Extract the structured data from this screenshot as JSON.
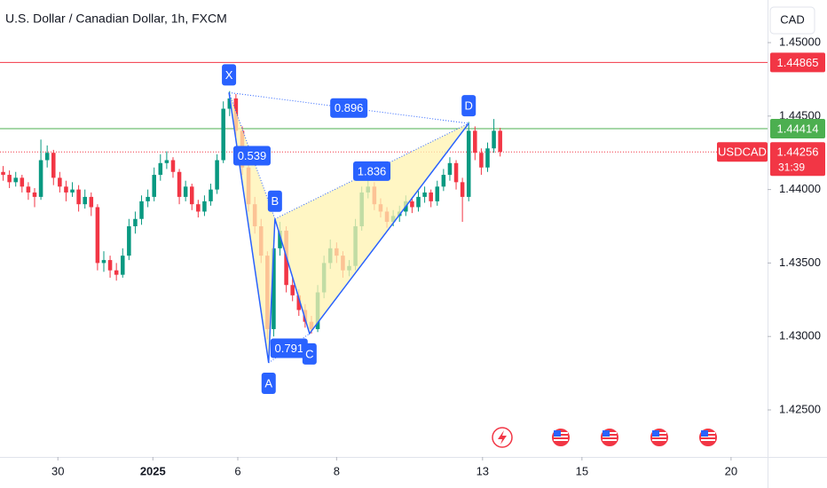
{
  "chart_data": {
    "type": "candlestick",
    "title": "U.S. Dollar / Canadian Dollar, 1h, FXCM",
    "currency": "CAD",
    "up_color": "#089981",
    "down_color": "#f23645",
    "grid": false,
    "ylim": [
      1.4218,
      1.4529
    ],
    "yticks": [
      {
        "value": 1.45,
        "label": "1.45000"
      },
      {
        "value": 1.445,
        "label": "1.44500"
      },
      {
        "value": 1.44,
        "label": "1.44000"
      },
      {
        "value": 1.435,
        "label": "1.43500"
      },
      {
        "value": 1.43,
        "label": "1.43000"
      },
      {
        "value": 1.425,
        "label": "1.42500"
      }
    ],
    "xlim": [
      0,
      122
    ],
    "xticks": [
      {
        "value": 9.2,
        "label": "30"
      },
      {
        "value": 24.3,
        "label": "2025"
      },
      {
        "value": 37.8,
        "label": "6"
      },
      {
        "value": 53.5,
        "label": "8"
      },
      {
        "value": 76.7,
        "label": "13"
      },
      {
        "value": 92.5,
        "label": "15"
      },
      {
        "value": 116.2,
        "label": "20"
      }
    ],
    "candles": [
      [
        1.4412,
        1.4416,
        1.4406,
        1.441
      ],
      [
        1.441,
        1.4413,
        1.4401,
        1.4405
      ],
      [
        1.4405,
        1.4412,
        1.4402,
        1.4408
      ],
      [
        1.4408,
        1.441,
        1.4398,
        1.4402
      ],
      [
        1.4402,
        1.4405,
        1.4393,
        1.4398
      ],
      [
        1.4398,
        1.4401,
        1.4388,
        1.4395
      ],
      [
        1.4395,
        1.4434,
        1.4393,
        1.442
      ],
      [
        1.442,
        1.443,
        1.4415,
        1.4425
      ],
      [
        1.4425,
        1.4427,
        1.4403,
        1.4408
      ],
      [
        1.4408,
        1.4412,
        1.4398,
        1.4402
      ],
      [
        1.4402,
        1.4406,
        1.4392,
        1.4398
      ],
      [
        1.4398,
        1.4405,
        1.4395,
        1.44
      ],
      [
        1.44,
        1.4403,
        1.4385,
        1.439
      ],
      [
        1.439,
        1.44,
        1.4387,
        1.4395
      ],
      [
        1.4395,
        1.4398,
        1.4382,
        1.4388
      ],
      [
        1.4388,
        1.439,
        1.4345,
        1.435
      ],
      [
        1.435,
        1.4358,
        1.4344,
        1.4352
      ],
      [
        1.4352,
        1.4355,
        1.434,
        1.4345
      ],
      [
        1.4345,
        1.435,
        1.4338,
        1.4342
      ],
      [
        1.4342,
        1.436,
        1.434,
        1.4355
      ],
      [
        1.4355,
        1.438,
        1.4352,
        1.4375
      ],
      [
        1.4375,
        1.4385,
        1.437,
        1.438
      ],
      [
        1.438,
        1.4396,
        1.4376,
        1.4392
      ],
      [
        1.4392,
        1.44,
        1.4388,
        1.4395
      ],
      [
        1.4395,
        1.4415,
        1.4392,
        1.441
      ],
      [
        1.441,
        1.4424,
        1.4406,
        1.4418
      ],
      [
        1.4418,
        1.4426,
        1.4414,
        1.442
      ],
      [
        1.442,
        1.4422,
        1.4408,
        1.4412
      ],
      [
        1.4412,
        1.4414,
        1.439,
        1.4395
      ],
      [
        1.4395,
        1.4406,
        1.4392,
        1.4402
      ],
      [
        1.4402,
        1.4404,
        1.4386,
        1.439
      ],
      [
        1.439,
        1.4393,
        1.4381,
        1.4385
      ],
      [
        1.4385,
        1.4396,
        1.4382,
        1.4392
      ],
      [
        1.4392,
        1.4404,
        1.4389,
        1.44
      ],
      [
        1.44,
        1.4424,
        1.4397,
        1.442
      ],
      [
        1.442,
        1.446,
        1.4418,
        1.4455
      ],
      [
        1.4455,
        1.4467,
        1.445,
        1.4462
      ],
      [
        1.4462,
        1.4465,
        1.4436,
        1.444
      ],
      [
        1.444,
        1.4443,
        1.441,
        1.4415
      ],
      [
        1.4415,
        1.4418,
        1.4385,
        1.439
      ],
      [
        1.439,
        1.4395,
        1.437,
        1.4375
      ],
      [
        1.4375,
        1.438,
        1.435,
        1.4355
      ],
      [
        1.4355,
        1.4358,
        1.4298,
        1.4305
      ],
      [
        1.4305,
        1.4365,
        1.43,
        1.436
      ],
      [
        1.436,
        1.4378,
        1.4355,
        1.4372
      ],
      [
        1.4372,
        1.4375,
        1.433,
        1.4335
      ],
      [
        1.4335,
        1.434,
        1.4324,
        1.4328
      ],
      [
        1.4328,
        1.4332,
        1.4314,
        1.4318
      ],
      [
        1.4318,
        1.4322,
        1.4306,
        1.431
      ],
      [
        1.431,
        1.4314,
        1.4302,
        1.4305
      ],
      [
        1.4305,
        1.4335,
        1.4303,
        1.433
      ],
      [
        1.433,
        1.4355,
        1.4326,
        1.435
      ],
      [
        1.435,
        1.4366,
        1.4346,
        1.436
      ],
      [
        1.436,
        1.4364,
        1.435,
        1.4355
      ],
      [
        1.4355,
        1.4358,
        1.434,
        1.4345
      ],
      [
        1.4345,
        1.4352,
        1.4341,
        1.4348
      ],
      [
        1.4348,
        1.438,
        1.4345,
        1.4375
      ],
      [
        1.4375,
        1.4402,
        1.4372,
        1.4398
      ],
      [
        1.4398,
        1.4408,
        1.4394,
        1.4402
      ],
      [
        1.4402,
        1.4405,
        1.4386,
        1.439
      ],
      [
        1.439,
        1.4394,
        1.4381,
        1.4385
      ],
      [
        1.4385,
        1.4388,
        1.4374,
        1.4378
      ],
      [
        1.4378,
        1.4386,
        1.4375,
        1.4382
      ],
      [
        1.4382,
        1.4389,
        1.4378,
        1.4385
      ],
      [
        1.4385,
        1.4396,
        1.4382,
        1.4392
      ],
      [
        1.4392,
        1.4395,
        1.4384,
        1.4388
      ],
      [
        1.4388,
        1.4399,
        1.4385,
        1.4395
      ],
      [
        1.4395,
        1.4402,
        1.4391,
        1.4398
      ],
      [
        1.4398,
        1.44,
        1.4388,
        1.4392
      ],
      [
        1.4392,
        1.4406,
        1.4389,
        1.4402
      ],
      [
        1.4402,
        1.4414,
        1.4399,
        1.441
      ],
      [
        1.441,
        1.4422,
        1.4406,
        1.4418
      ],
      [
        1.4418,
        1.442,
        1.44,
        1.4405
      ],
      [
        1.4405,
        1.4408,
        1.4378,
        1.4395
      ],
      [
        1.4395,
        1.4446,
        1.4392,
        1.444
      ],
      [
        1.444,
        1.4443,
        1.442,
        1.4425
      ],
      [
        1.4425,
        1.4428,
        1.441,
        1.4415
      ],
      [
        1.4415,
        1.4432,
        1.4412,
        1.4428
      ],
      [
        1.4428,
        1.4448,
        1.4425,
        1.444
      ],
      [
        1.444,
        1.4442,
        1.44225,
        1.44256
      ]
    ],
    "levels": [
      {
        "price": 1.44865,
        "color": "#f23645"
      },
      {
        "price": 1.44414,
        "color": "#4caf50"
      }
    ],
    "last": {
      "symbol": "USDCAD",
      "price": 1.44256,
      "countdown": "31:39",
      "color": "#f23645"
    },
    "pattern": {
      "color": "#2962ff",
      "fill": "#fff3b0",
      "points": [
        {
          "label": "X",
          "x": 36.4,
          "price": 1.4466
        },
        {
          "label": "A",
          "x": 42.7,
          "price": 1.4282
        },
        {
          "label": "B",
          "x": 43.7,
          "price": 1.438
        },
        {
          "label": "C",
          "x": 49.2,
          "price": 1.4302
        },
        {
          "label": "D",
          "x": 74.5,
          "price": 1.4445
        }
      ],
      "ratios": [
        0.539,
        0.791,
        1.836,
        0.896
      ]
    }
  }
}
